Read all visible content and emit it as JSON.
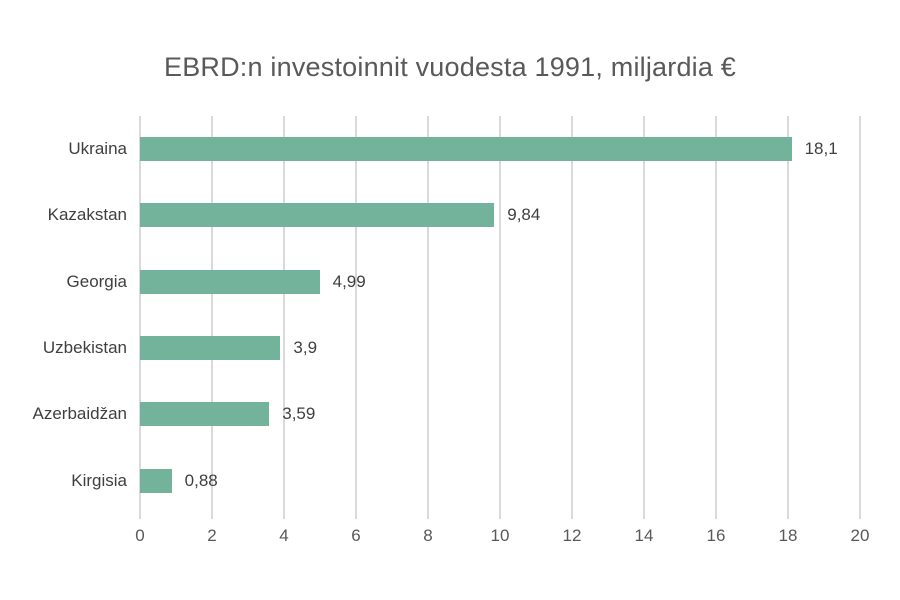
{
  "chart_data": {
    "type": "bar",
    "orientation": "horizontal",
    "title": "EBRD:n investoinnit vuodesta 1991, miljardia €",
    "categories": [
      "Ukraina",
      "Kazakstan",
      "Georgia",
      "Uzbekistan",
      "Azerbaidžan",
      "Kirgisia"
    ],
    "values": [
      18.1,
      9.84,
      4.99,
      3.9,
      3.59,
      0.88
    ],
    "value_labels": [
      "18,1",
      "9,84",
      "4,99",
      "3,9",
      "3,59",
      "0,88"
    ],
    "xlabel": "",
    "ylabel": "",
    "xlim": [
      0,
      20
    ],
    "xtick_step": 2,
    "xtick_labels": [
      "0",
      "2",
      "4",
      "6",
      "8",
      "10",
      "12",
      "14",
      "16",
      "18",
      "20"
    ],
    "grid": "vertical-only",
    "legend": "none",
    "colors": {
      "bar": "#73b39c",
      "gridline": "#d9d9d9",
      "title_text": "#595959",
      "label_text": "#3f3f3f",
      "tick_text": "#595959",
      "background": "#ffffff"
    }
  }
}
